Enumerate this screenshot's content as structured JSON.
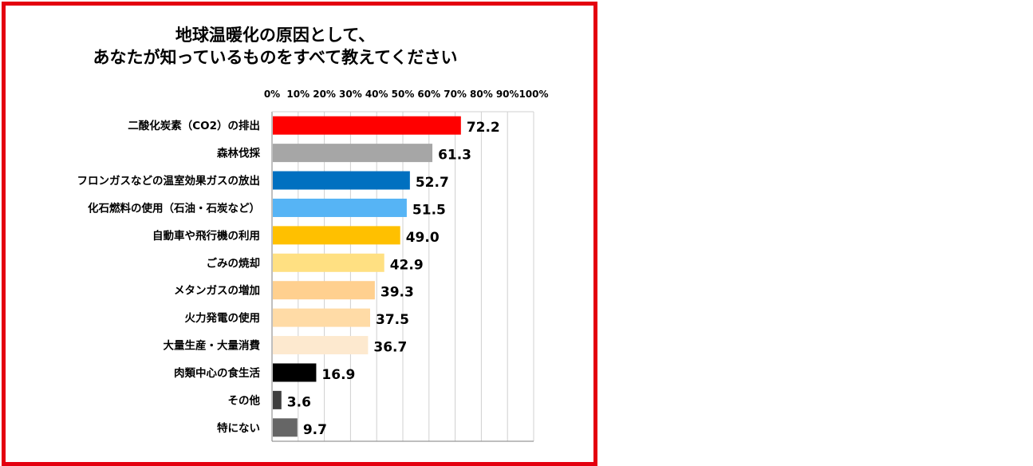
{
  "chart_data": {
    "type": "bar",
    "orientation": "horizontal",
    "title_lines": [
      "地球温暖化の原因として、",
      "あなたが知っているものをすべて教えてください"
    ],
    "categories": [
      "二酸化炭素（CO2）の排出",
      "森林伐採",
      "フロンガスなどの温室効果ガスの放出",
      "化石燃料の使用（石油・石炭など）",
      "自動車や飛行機の利用",
      "ごみの焼却",
      "メタンガスの増加",
      "火力発電の使用",
      "大量生産・大量消費",
      "肉類中心の食生活",
      "その他",
      "特にない"
    ],
    "values": [
      72.2,
      61.3,
      52.7,
      51.5,
      49.0,
      42.9,
      39.3,
      37.5,
      36.7,
      16.9,
      3.6,
      9.7
    ],
    "value_labels": [
      "72.2",
      "61.3",
      "52.7",
      "51.5",
      "49.0",
      "42.9",
      "39.3",
      "37.5",
      "36.7",
      "16.9",
      "3.6",
      "9.7"
    ],
    "colors": [
      "#ff0000",
      "#a6a6a6",
      "#0070c0",
      "#56b4f5",
      "#ffc000",
      "#ffe082",
      "#ffd08f",
      "#ffdba6",
      "#fde9cf",
      "#000000",
      "#3f3f3f",
      "#666666"
    ],
    "xlim": [
      0,
      100
    ],
    "x_ticks": [
      "0%",
      "10%",
      "20%",
      "30%",
      "40%",
      "50%",
      "60%",
      "70%",
      "80%",
      "90%",
      "100%"
    ],
    "x_tick_values": [
      0,
      10,
      20,
      30,
      40,
      50,
      60,
      70,
      80,
      90,
      100
    ],
    "x_axis_position": "top",
    "grid": true
  }
}
